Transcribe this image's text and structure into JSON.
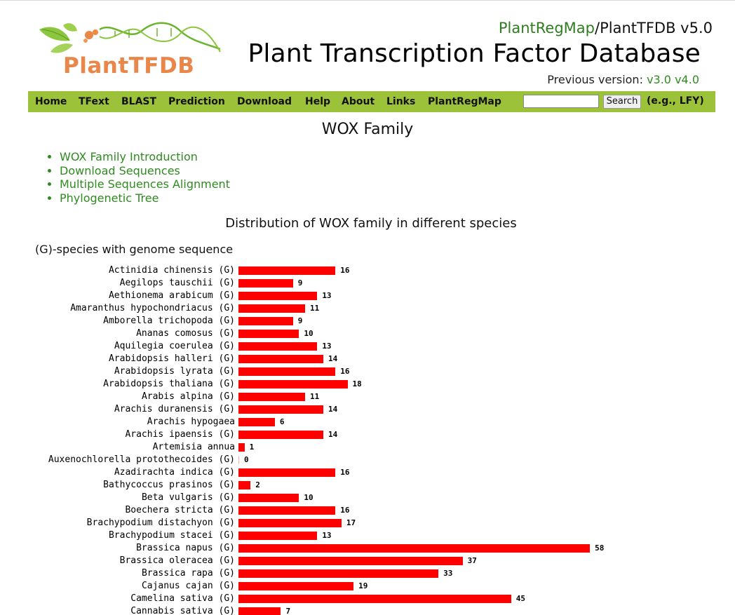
{
  "header": {
    "logo_text": "PlantTFDB",
    "regmap_link": "PlantRegMap",
    "version_suffix": "/PlantTFDB v5.0",
    "title": "Plant Transcription Factor Database",
    "previous_label": "Previous version:",
    "previous_links": [
      "v3.0",
      "v4.0"
    ]
  },
  "nav": {
    "items": [
      "Home",
      "TFext",
      "BLAST",
      "Prediction",
      "Download",
      "Help",
      "About",
      "Links",
      "PlantRegMap"
    ],
    "search_value": "",
    "search_button": "Search",
    "example": "(e.g., LFY)"
  },
  "family_title": "WOX Family",
  "links": [
    "WOX Family Introduction",
    "Download Sequences",
    "Multiple Sequences Alignment",
    "Phylogenetic Tree"
  ],
  "colors": {
    "accent": "#9cc23a",
    "link": "#2e8b1f",
    "bar": "#ff0000",
    "logo": "#e9874a"
  },
  "chart_data": {
    "type": "bar",
    "orientation": "horizontal",
    "title": "Distribution of WOX family in different species",
    "note": "(G)-species with genome sequence",
    "categories": [
      "Actinidia chinensis (G)",
      "Aegilops tauschii (G)",
      "Aethionema arabicum (G)",
      "Amaranthus hypochondriacus (G)",
      "Amborella trichopoda (G)",
      "Ananas comosus (G)",
      "Aquilegia coerulea (G)",
      "Arabidopsis halleri (G)",
      "Arabidopsis lyrata (G)",
      "Arabidopsis thaliana (G)",
      "Arabis alpina (G)",
      "Arachis duranensis (G)",
      "Arachis hypogaea",
      "Arachis ipaensis (G)",
      "Artemisia annua",
      "Auxenochlorella protothecoides (G)",
      "Azadirachta indica (G)",
      "Bathycoccus prasinos (G)",
      "Beta vulgaris (G)",
      "Boechera stricta (G)",
      "Brachypodium distachyon (G)",
      "Brachypodium stacei (G)",
      "Brassica napus (G)",
      "Brassica oleracea (G)",
      "Brassica rapa (G)",
      "Cajanus cajan (G)",
      "Camelina sativa (G)",
      "Cannabis sativa (G)"
    ],
    "values": [
      16,
      9,
      13,
      11,
      9,
      10,
      13,
      14,
      16,
      18,
      11,
      14,
      6,
      14,
      1,
      0,
      16,
      2,
      10,
      16,
      17,
      13,
      58,
      37,
      33,
      19,
      45,
      7
    ],
    "grid": false,
    "legend": "none"
  }
}
